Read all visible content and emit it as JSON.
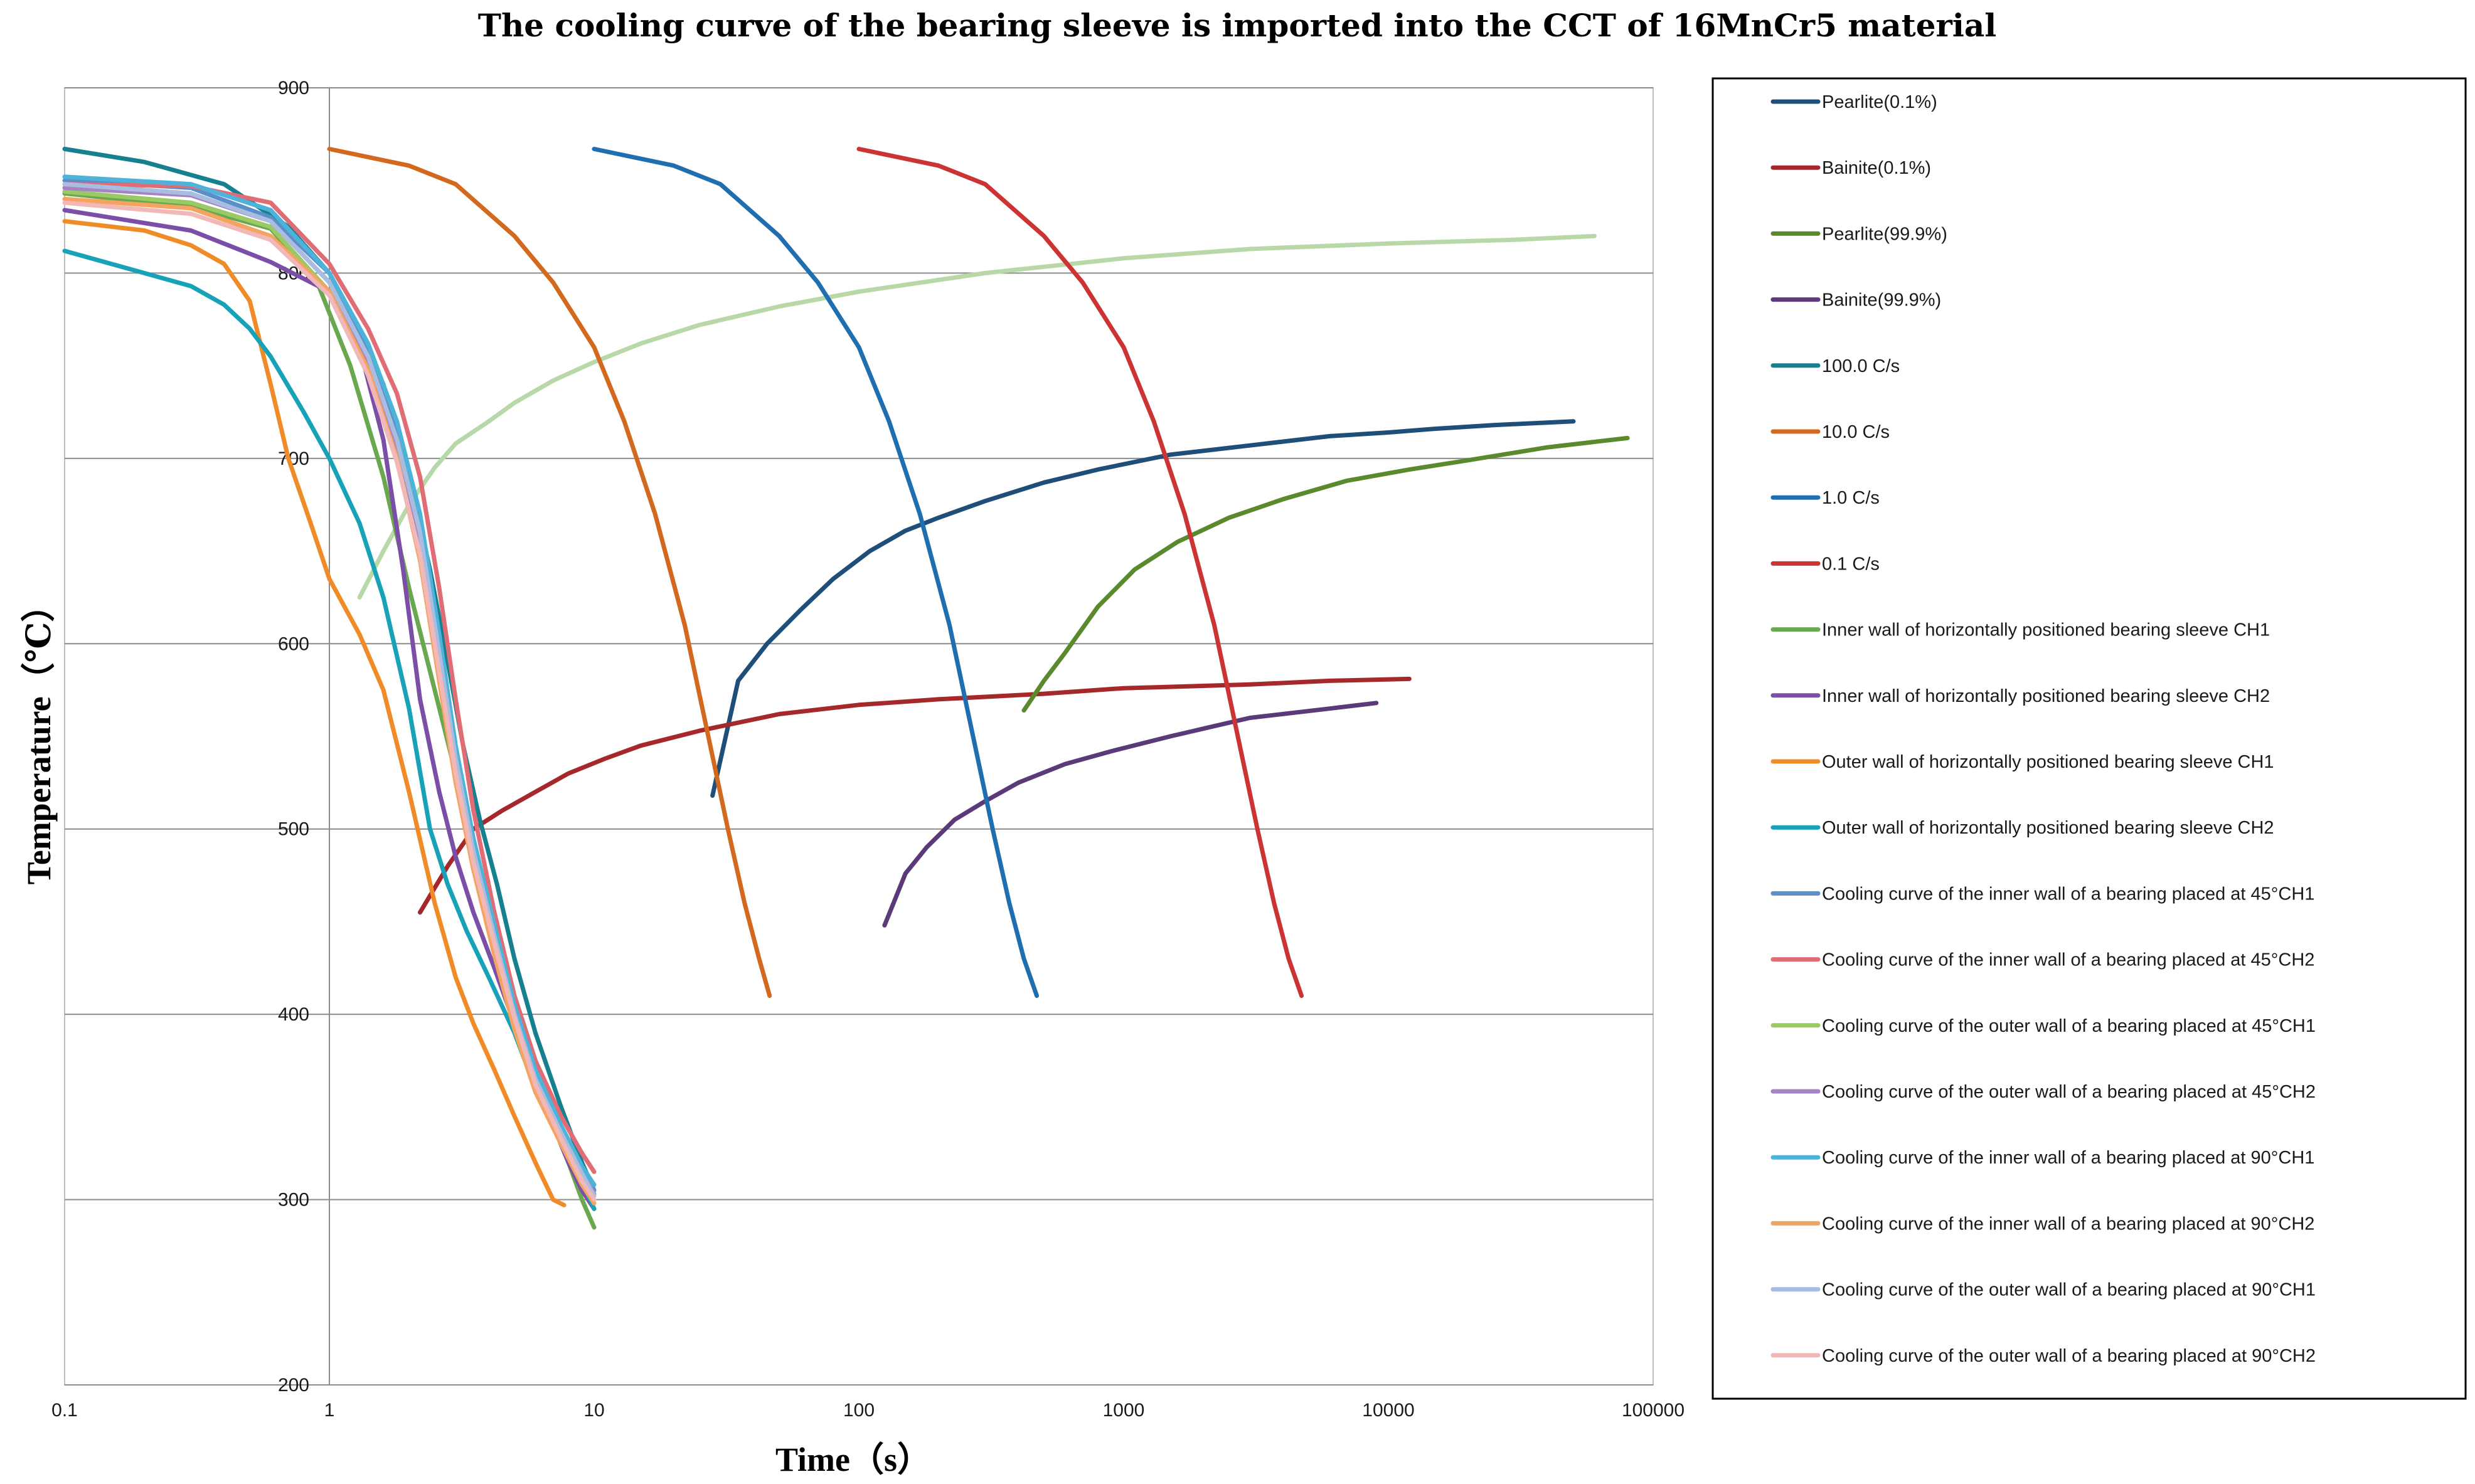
{
  "chart_data": {
    "type": "line",
    "title": "The cooling curve of the bearing sleeve is imported into the CCT of 16MnCr5 material",
    "xlabel": "Time（s）",
    "ylabel": "Temperature（℃）",
    "xscale": "log",
    "xlim": [
      0.1,
      100000
    ],
    "ylim": [
      200,
      900
    ],
    "x_ticks": [
      "0.1",
      "1",
      "10",
      "100",
      "1000",
      "10000",
      "100000"
    ],
    "y_ticks": [
      "200",
      "300",
      "400",
      "500",
      "600",
      "700",
      "800",
      "900"
    ],
    "grid": "horizontal",
    "legend_position": "right",
    "series": [
      {
        "name": "Pearlite(0.1%)",
        "color": "#1f4e79",
        "x": [
          28,
          35,
          45,
          60,
          80,
          110,
          150,
          200,
          300,
          500,
          800,
          1500,
          3000,
          6000,
          10000,
          15000,
          25000,
          50000
        ],
        "y": [
          518,
          580,
          600,
          618,
          635,
          650,
          661,
          668,
          677,
          687,
          694,
          702,
          707,
          712,
          714,
          716,
          718,
          720
        ]
      },
      {
        "name": "Bainite(0.1%)",
        "color": "#a5282a",
        "x": [
          2.2,
          2.8,
          3.5,
          4.5,
          6,
          8,
          11,
          15,
          25,
          50,
          100,
          200,
          500,
          1000,
          3000,
          6000,
          12000
        ],
        "y": [
          455,
          480,
          500,
          510,
          520,
          530,
          538,
          545,
          553,
          562,
          567,
          570,
          573,
          576,
          578,
          580,
          581
        ]
      },
      {
        "name": "Pearlite(99.9%)",
        "color": "#5b8a2e",
        "x": [
          420,
          500,
          600,
          800,
          1100,
          1600,
          2500,
          4000,
          7000,
          12000,
          20000,
          40000,
          80000
        ],
        "y": [
          564,
          580,
          595,
          620,
          640,
          655,
          668,
          678,
          688,
          694,
          699,
          706,
          711
        ]
      },
      {
        "name": "Bainite(99.9%)",
        "color": "#5b3a7a",
        "x": [
          125,
          150,
          180,
          230,
          300,
          400,
          600,
          900,
          1500,
          3000,
          6000,
          9000
        ],
        "y": [
          448,
          476,
          490,
          505,
          515,
          525,
          535,
          542,
          550,
          560,
          565,
          568
        ]
      },
      {
        "name": "100.0 C/s",
        "color": "#17808f",
        "x": [
          0.1,
          0.2,
          0.4,
          0.7,
          1,
          1.3,
          1.6,
          2,
          2.4,
          2.8,
          3.2,
          3.7,
          4.3,
          5,
          6,
          7.5,
          9,
          10
        ],
        "y": [
          867,
          860,
          848,
          825,
          800,
          770,
          740,
          690,
          640,
          590,
          545,
          505,
          470,
          430,
          390,
          350,
          320,
          305
        ]
      },
      {
        "name": "10.0 C/s",
        "color": "#d2691e",
        "x": [
          1,
          2,
          3,
          5,
          7,
          10,
          13,
          17,
          22,
          27,
          32,
          37,
          42,
          46
        ],
        "y": [
          867,
          858,
          848,
          820,
          795,
          760,
          720,
          670,
          610,
          550,
          500,
          460,
          430,
          410
        ]
      },
      {
        "name": "1.0 C/s",
        "color": "#1f6fb0",
        "x": [
          10,
          20,
          30,
          50,
          70,
          100,
          130,
          170,
          220,
          270,
          320,
          370,
          420,
          470
        ],
        "y": [
          867,
          858,
          848,
          820,
          795,
          760,
          720,
          670,
          610,
          550,
          500,
          460,
          430,
          410
        ]
      },
      {
        "name": "0.1 C/s",
        "color": "#cc3333",
        "x": [
          100,
          200,
          300,
          500,
          700,
          1000,
          1300,
          1700,
          2200,
          2700,
          3200,
          3700,
          4200,
          4700
        ],
        "y": [
          867,
          858,
          848,
          820,
          795,
          760,
          720,
          670,
          610,
          550,
          500,
          460,
          430,
          410
        ]
      },
      {
        "name": "Inner wall of horizontally positioned bearing sleeve CH1",
        "color": "#6aa84f",
        "x": [
          0.1,
          0.3,
          0.6,
          0.9,
          1.2,
          1.6,
          2,
          2.5,
          3,
          3.5,
          4.2,
          5,
          6,
          7,
          8,
          9,
          10
        ],
        "y": [
          843,
          836,
          824,
          795,
          750,
          690,
          630,
          575,
          530,
          490,
          450,
          410,
          375,
          345,
          320,
          300,
          285
        ]
      },
      {
        "name": "Inner wall of horizontally positioned bearing sleeve CH2",
        "color": "#7b4fa8",
        "x": [
          0.1,
          0.3,
          0.6,
          1,
          1.3,
          1.6,
          1.9,
          2.2,
          2.6,
          3,
          3.5,
          4.2,
          5,
          6,
          7,
          8,
          9,
          10
        ],
        "y": [
          834,
          823,
          806,
          790,
          760,
          710,
          640,
          570,
          520,
          485,
          455,
          425,
          395,
          365,
          340,
          320,
          305,
          295
        ]
      },
      {
        "name": "Outer wall of horizontally positioned bearing sleeve CH1",
        "color": "#f08c28",
        "x": [
          0.1,
          0.2,
          0.3,
          0.4,
          0.5,
          0.6,
          0.7,
          0.85,
          1,
          1.3,
          1.6,
          2,
          2.5,
          3,
          3.5,
          4.2,
          5,
          6,
          7,
          7.7
        ],
        "y": [
          828,
          823,
          815,
          805,
          785,
          740,
          700,
          665,
          635,
          605,
          575,
          520,
          460,
          420,
          395,
          370,
          345,
          320,
          300,
          297
        ]
      },
      {
        "name": "Outer wall of horizontally positioned bearing sleeve CH2",
        "color": "#17a2b8",
        "x": [
          0.1,
          0.2,
          0.3,
          0.4,
          0.5,
          0.6,
          0.8,
          1,
          1.3,
          1.6,
          2,
          2.4,
          2.8,
          3.3,
          4,
          5,
          6,
          7.5,
          9,
          10
        ],
        "y": [
          812,
          800,
          793,
          783,
          770,
          755,
          725,
          700,
          665,
          625,
          565,
          500,
          470,
          445,
          420,
          390,
          360,
          335,
          310,
          295
        ]
      },
      {
        "name": "Cooling curve of the inner wall of a bearing placed at 45°CH1",
        "color": "#5b8fc9",
        "x": [
          0.1,
          0.3,
          0.6,
          1,
          1.4,
          1.8,
          2.2,
          2.6,
          3,
          3.5,
          4.2,
          5,
          6,
          7.5,
          9,
          10
        ],
        "y": [
          850,
          846,
          830,
          800,
          760,
          715,
          665,
          600,
          540,
          490,
          440,
          395,
          360,
          335,
          315,
          305
        ]
      },
      {
        "name": "Cooling curve of the inner wall of a bearing placed at 45°CH2",
        "color": "#e06c75",
        "x": [
          0.1,
          0.3,
          0.6,
          1,
          1.4,
          1.8,
          2.2,
          2.6,
          3,
          3.5,
          4.2,
          5,
          6,
          7.5,
          9,
          10
        ],
        "y": [
          848,
          847,
          838,
          805,
          770,
          735,
          690,
          630,
          570,
          510,
          455,
          410,
          375,
          345,
          325,
          315
        ]
      },
      {
        "name": "Cooling curve of the outer wall of a bearing placed at 45°CH1",
        "color": "#9bc966",
        "x": [
          0.1,
          0.3,
          0.6,
          1,
          1.4,
          1.8,
          2.2,
          2.6,
          3,
          3.5,
          4.2,
          5,
          6,
          7.5,
          9,
          10
        ],
        "y": [
          844,
          838,
          825,
          790,
          745,
          700,
          650,
          590,
          535,
          485,
          440,
          400,
          365,
          335,
          310,
          300
        ]
      },
      {
        "name": "Cooling curve of the outer wall of a bearing placed at 45°CH2",
        "color": "#a683c2",
        "x": [
          0.1,
          0.3,
          0.6,
          1,
          1.4,
          1.8,
          2.2,
          2.6,
          3,
          3.5,
          4.2,
          5,
          6,
          7.5,
          9,
          10
        ],
        "y": [
          846,
          842,
          828,
          795,
          752,
          705,
          655,
          595,
          540,
          490,
          445,
          403,
          368,
          338,
          315,
          303
        ]
      },
      {
        "name": "Cooling curve of the inner wall of a bearing placed at 90°CH1",
        "color": "#4fb3d9",
        "x": [
          0.1,
          0.3,
          0.6,
          1,
          1.4,
          1.8,
          2.2,
          2.6,
          3,
          3.5,
          4.2,
          5,
          6,
          7.5,
          9,
          10
        ],
        "y": [
          852,
          848,
          834,
          800,
          762,
          720,
          670,
          605,
          545,
          495,
          448,
          405,
          370,
          340,
          318,
          308
        ]
      },
      {
        "name": "Cooling curve of the inner wall of a bearing placed at 90°CH2",
        "color": "#f4a460",
        "x": [
          0.1,
          0.3,
          0.6,
          1,
          1.4,
          1.8,
          2.2,
          2.6,
          3,
          3.5,
          4.2,
          5,
          6,
          7.5,
          9,
          10
        ],
        "y": [
          840,
          835,
          820,
          790,
          748,
          700,
          645,
          580,
          525,
          478,
          432,
          392,
          358,
          330,
          308,
          298
        ]
      },
      {
        "name": "Cooling curve of the outer wall of a bearing placed at 90°CH1",
        "color": "#a9bde0",
        "x": [
          0.1,
          0.3,
          0.6,
          1,
          1.4,
          1.8,
          2.2,
          2.6,
          3,
          3.5,
          4.2,
          5,
          6,
          7.5,
          9,
          10
        ],
        "y": [
          848,
          843,
          828,
          795,
          755,
          710,
          660,
          595,
          538,
          488,
          442,
          400,
          365,
          336,
          314,
          302
        ]
      },
      {
        "name": "Cooling curve of the outer wall of a bearing placed at 90°CH2",
        "color": "#f2b8b8",
        "x": [
          0.1,
          0.3,
          0.6,
          1,
          1.4,
          1.8,
          2.2,
          2.6,
          3,
          3.5,
          4.2,
          5,
          6,
          7.5,
          9,
          10
        ],
        "y": [
          838,
          832,
          818,
          788,
          745,
          698,
          648,
          585,
          530,
          482,
          438,
          398,
          362,
          333,
          310,
          300
        ]
      }
    ],
    "unlabeled_series": [
      {
        "color": "#b8d8a8",
        "x": [
          1.3,
          1.6,
          2,
          2.5,
          3,
          4,
          5,
          7,
          10,
          15,
          25,
          50,
          100,
          300,
          1000,
          3000,
          10000,
          30000,
          60000
        ],
        "y": [
          625,
          650,
          675,
          695,
          708,
          720,
          730,
          742,
          752,
          762,
          772,
          782,
          790,
          800,
          808,
          813,
          816,
          818,
          820
        ]
      }
    ]
  }
}
